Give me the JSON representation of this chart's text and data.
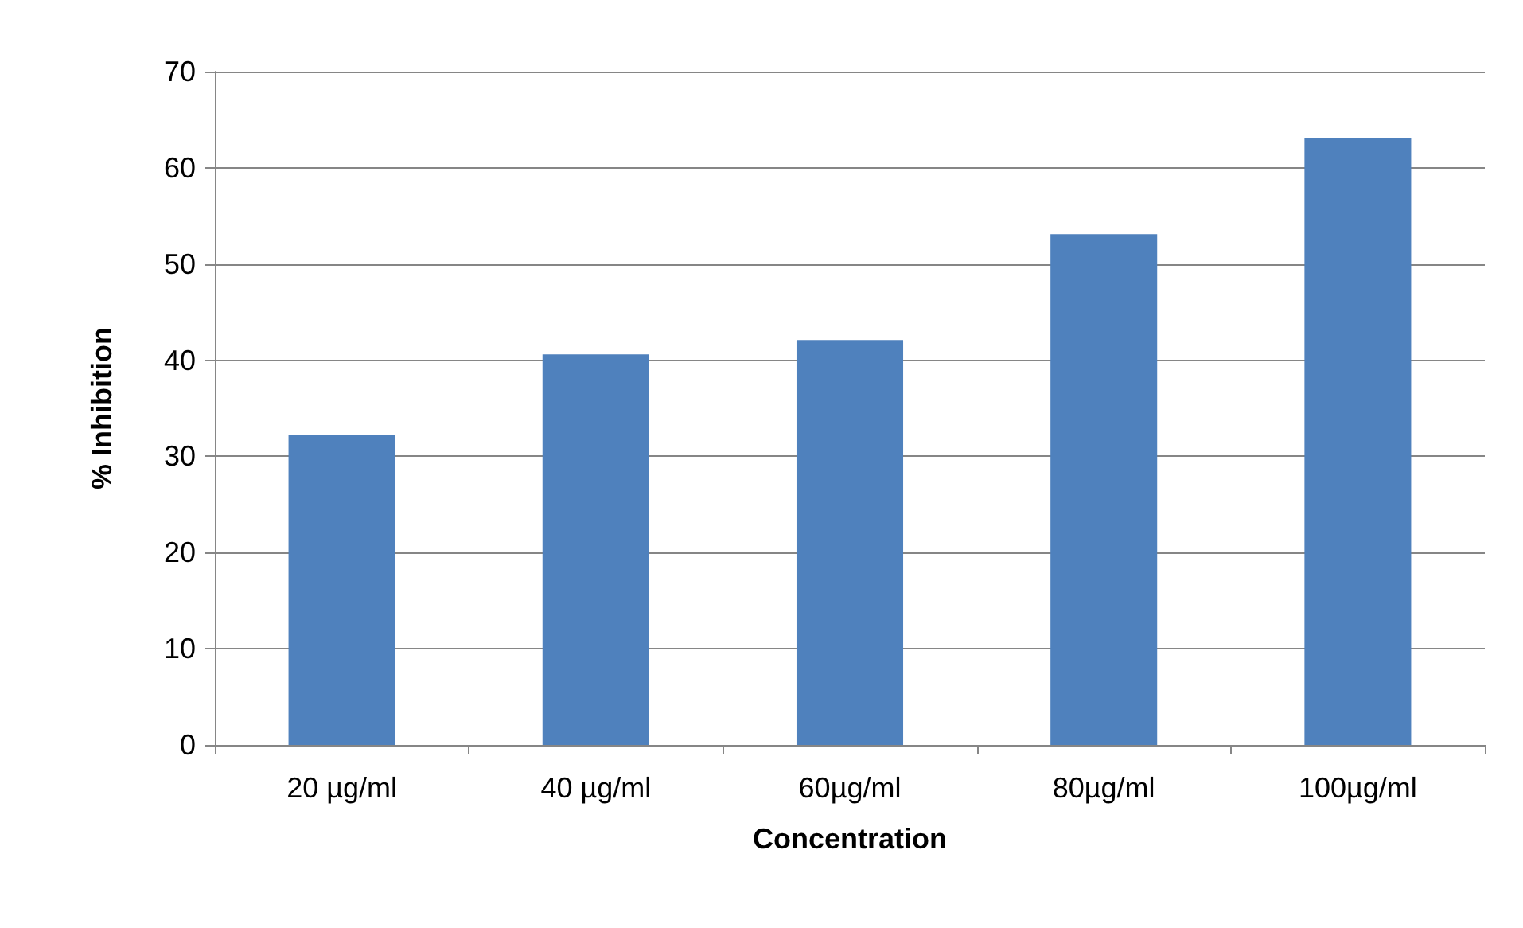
{
  "chart_data": {
    "type": "bar",
    "xlabel": "Concentration",
    "ylabel": "% Inhibition",
    "categories": [
      "20 µg/ml",
      "40 µg/ml",
      "60µg/ml",
      "80µg/ml",
      "100µg/ml"
    ],
    "values": [
      32.2,
      40.6,
      42.1,
      53.1,
      63.1
    ],
    "color": "#4f81bd",
    "ylim": [
      0,
      70
    ],
    "yticks": [
      0,
      10,
      20,
      30,
      40,
      50,
      60,
      70
    ],
    "grid": "y"
  }
}
